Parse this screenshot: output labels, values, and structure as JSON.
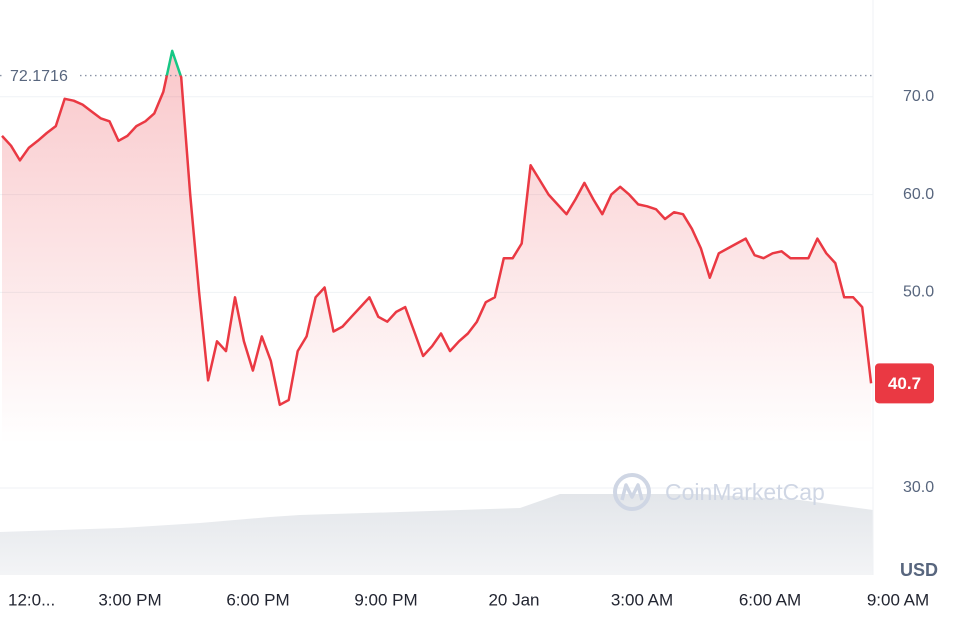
{
  "chart_data": {
    "type": "line",
    "y_label": "USD",
    "watermark": "CoinMarketCap",
    "reference_line": 72.1716,
    "x": [
      0,
      0.21,
      0.42,
      0.63,
      0.84,
      1.05,
      1.26,
      1.47,
      1.68,
      1.89,
      2.1,
      2.31,
      2.52,
      2.73,
      2.94,
      3.15,
      3.36,
      3.57,
      3.78,
      3.99,
      4.2,
      4.41,
      4.62,
      4.83,
      5.04,
      5.25,
      5.46,
      5.67,
      5.88,
      6.09,
      6.3,
      6.51,
      6.72,
      6.93,
      7.14,
      7.35,
      7.56,
      7.77,
      7.98,
      8.19,
      8.4,
      8.61,
      8.82,
      9.03,
      9.24,
      9.45,
      9.66,
      9.87,
      10.08,
      10.29,
      10.5,
      10.71,
      10.92,
      11.13,
      11.34,
      11.55,
      11.76,
      11.97,
      12.18,
      12.39,
      12.6,
      12.81,
      13.02,
      13.23,
      13.44,
      13.65,
      13.86,
      14.07,
      14.28,
      14.49,
      14.7,
      14.91,
      15.12,
      15.33,
      15.54,
      15.75,
      15.96,
      16.17,
      16.38,
      16.59,
      16.8,
      17.01,
      17.22,
      17.43,
      17.64,
      17.85,
      18.06,
      18.27,
      18.48,
      18.69,
      18.9,
      19.11,
      19.32,
      19.53,
      19.74,
      19.95,
      20.16,
      20.37
    ],
    "series": [
      {
        "color": "#ea3943",
        "color_above": "#16c784",
        "values": [
          66,
          65,
          63.5,
          64.8,
          65.5,
          66.3,
          67,
          69.8,
          69.6,
          69.2,
          68.5,
          67.8,
          67.5,
          65.5,
          66,
          67,
          67.5,
          68.3,
          70.5,
          74.7,
          72,
          60,
          50,
          41,
          45,
          44,
          49.5,
          45,
          42,
          45.5,
          43,
          38.5,
          39,
          44,
          45.5,
          49.5,
          50.5,
          46,
          46.5,
          47.5,
          48.5,
          49.5,
          47.5,
          47,
          48,
          48.5,
          46,
          43.5,
          44.5,
          45.8,
          44,
          45,
          45.8,
          47,
          49,
          49.5,
          53.5,
          53.5,
          55,
          63,
          61.5,
          60,
          59,
          58,
          59.5,
          61.2,
          59.5,
          58,
          60,
          60.8,
          60,
          59,
          58.8,
          58.5,
          57.5,
          58.2,
          58,
          56.5,
          54.5,
          51.5,
          54,
          54.5,
          55,
          55.5,
          53.8,
          53.5,
          54,
          54.2,
          53.5,
          53.5,
          53.5,
          55.5,
          54,
          53,
          49.5,
          49.5,
          48.5,
          40.7
        ]
      }
    ],
    "xlim": [
      0,
      21
    ],
    "xticks": [
      {
        "value": 0,
        "label": "12:0..."
      },
      {
        "value": 3,
        "label": "3:00 PM"
      },
      {
        "value": 6,
        "label": "6:00 PM"
      },
      {
        "value": 9,
        "label": "9:00 PM"
      },
      {
        "value": 12,
        "label": "20 Jan"
      },
      {
        "value": 15,
        "label": "3:00 AM"
      },
      {
        "value": 18,
        "label": "6:00 AM"
      },
      {
        "value": 21,
        "label": "9:00 AM"
      }
    ],
    "ylim": [
      21.1,
      79.9
    ],
    "yticks": [
      {
        "value": 30,
        "label": "30.0"
      },
      {
        "value": 50,
        "label": "50.0"
      },
      {
        "value": 60,
        "label": "60.0"
      },
      {
        "value": 70,
        "label": "70.0"
      }
    ],
    "grid": true
  }
}
